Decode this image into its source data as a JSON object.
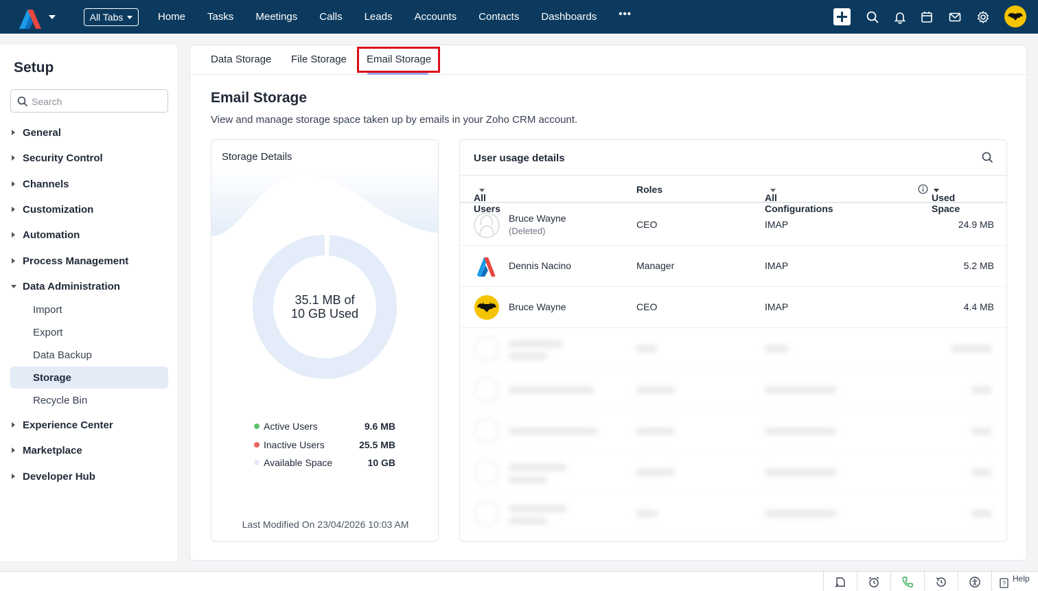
{
  "topbar": {
    "all_tabs_label": "All Tabs",
    "nav": [
      "Home",
      "Tasks",
      "Meetings",
      "Calls",
      "Leads",
      "Accounts",
      "Contacts",
      "Dashboards"
    ],
    "more_label": "•••",
    "icons": [
      "plus-icon",
      "search-icon",
      "bell-icon",
      "calendar-icon",
      "mail-icon",
      "gear-icon",
      "avatar"
    ]
  },
  "sidebar": {
    "title": "Setup",
    "search_placeholder": "Search",
    "items": [
      {
        "label": "General"
      },
      {
        "label": "Security Control"
      },
      {
        "label": "Channels"
      },
      {
        "label": "Customization"
      },
      {
        "label": "Automation"
      },
      {
        "label": "Process Management"
      },
      {
        "label": "Data Administration"
      },
      {
        "label": "Experience Center"
      },
      {
        "label": "Marketplace"
      },
      {
        "label": "Developer Hub"
      }
    ],
    "sub_items": [
      {
        "label": "Import"
      },
      {
        "label": "Export"
      },
      {
        "label": "Data Backup"
      },
      {
        "label": "Storage"
      },
      {
        "label": "Recycle Bin"
      }
    ]
  },
  "tabs": [
    "Data Storage",
    "File Storage",
    "Email Storage"
  ],
  "page": {
    "title": "Email Storage",
    "description": "View and manage storage space taken up by emails in your Zoho CRM account."
  },
  "storage": {
    "title": "Storage Details",
    "center_line1": "35.1 MB of",
    "center_line2": "10 GB Used",
    "used_fraction": 0.0034,
    "legend": [
      {
        "label": "Active Users",
        "value": "9.6 MB",
        "color": "#5dc26a"
      },
      {
        "label": "Inactive Users",
        "value": "25.5 MB",
        "color": "#e8655f"
      },
      {
        "label": "Available Space",
        "value": "10 GB",
        "color": "#e3ecf8"
      }
    ],
    "last_modified": "Last Modified On 23/04/2026 10:03 AM"
  },
  "usage": {
    "title": "User usage details",
    "columns": {
      "users": "All Users",
      "roles": "Roles",
      "config": "All Configurations",
      "used": "Used Space"
    },
    "rows": [
      {
        "name": "Bruce Wayne",
        "sub": "(Deleted)",
        "role": "CEO",
        "config": "IMAP",
        "used": "24.9 MB"
      },
      {
        "name": "Dennis Nacino",
        "sub": "",
        "role": "Manager",
        "config": "IMAP",
        "used": "5.2 MB"
      },
      {
        "name": "Bruce Wayne",
        "sub": "",
        "role": "CEO",
        "config": "IMAP",
        "used": "4.4 MB"
      }
    ]
  },
  "bottombar": {
    "help_label": "Help"
  }
}
